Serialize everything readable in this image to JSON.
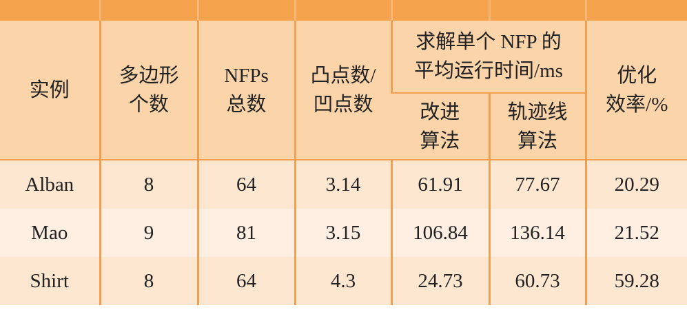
{
  "table": {
    "header": {
      "instance": "实例",
      "polygon_count": "多边形\n个数",
      "nfp_total": "NFPs\n总数",
      "convex_concave": "凸点数/\n凹点数",
      "avg_time": "求解单个 NFP 的\n平均运行时间/ms",
      "improved": "改进\n算法",
      "orbit": "轨迹线\n算法",
      "efficiency": "优化\n效率/%"
    },
    "rows": [
      [
        "Alban",
        8,
        64,
        3.14,
        61.91,
        77.67,
        20.29
      ],
      [
        "Mao",
        9,
        81,
        3.15,
        106.84,
        136.14,
        21.52
      ],
      [
        "Shirt",
        8,
        64,
        4.3,
        24.73,
        60.73,
        59.28
      ]
    ]
  }
}
